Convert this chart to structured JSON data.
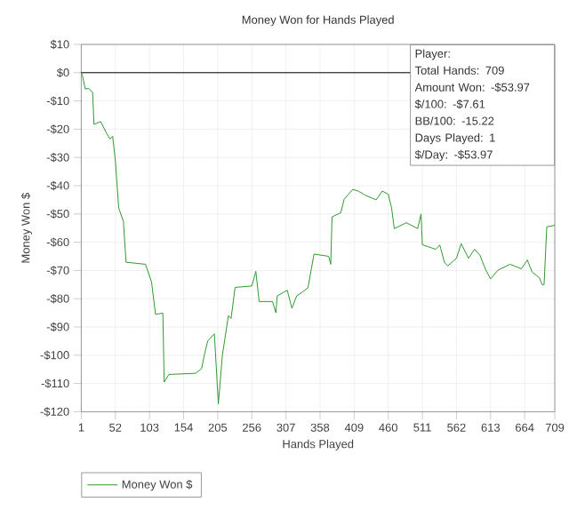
{
  "chart_data": {
    "type": "line",
    "title": "Money Won for Hands Played",
    "xlabel": "Hands Played",
    "ylabel": "Money Won $",
    "x": [
      1,
      3,
      7,
      12,
      18,
      20,
      30,
      39,
      44,
      48,
      52,
      57,
      64,
      68,
      97,
      106,
      112,
      123,
      125,
      132,
      172,
      181,
      185,
      190,
      200,
      206,
      212,
      221,
      225,
      231,
      256,
      262,
      267,
      287,
      292,
      294,
      309,
      316,
      323,
      332,
      340,
      349,
      371,
      374,
      376,
      389,
      394,
      407,
      416,
      425,
      436,
      442,
      451,
      460,
      465,
      469,
      487,
      504,
      509,
      511,
      531,
      537,
      544,
      549,
      562,
      569,
      580,
      589,
      597,
      606,
      613,
      624,
      642,
      659,
      668,
      675,
      686,
      690,
      693,
      697,
      709
    ],
    "series": [
      {
        "name": "Money Won $",
        "color": "#2e9a2e",
        "values": [
          0,
          -1.3,
          -5.8,
          -5.5,
          -7,
          -18.3,
          -17.3,
          -21.5,
          -23.5,
          -22.5,
          -31.2,
          -47.9,
          -52.7,
          -67.1,
          -67.8,
          -74,
          -85.5,
          -85.1,
          -109.5,
          -106.8,
          -106.4,
          -104.7,
          -100,
          -95,
          -92.4,
          -117.2,
          -100,
          -86,
          -87,
          -76,
          -75.5,
          -70.3,
          -81,
          -81,
          -85,
          -79,
          -77,
          -83.4,
          -79,
          -77.6,
          -76.1,
          -64.2,
          -65,
          -67.8,
          -51,
          -49.6,
          -44.8,
          -41.3,
          -42,
          -43.3,
          -44.4,
          -45,
          -41.9,
          -43,
          -47.9,
          -55.2,
          -53.1,
          -55.2,
          -50,
          -60.9,
          -62.5,
          -61,
          -67.1,
          -68.4,
          -65.7,
          -60.5,
          -65.7,
          -62.5,
          -64.6,
          -69.9,
          -73,
          -69.9,
          -67.8,
          -69.4,
          -66.3,
          -70.5,
          -72.6,
          -75,
          -75,
          -54.6,
          -54
        ]
      }
    ],
    "xlim": [
      1,
      709
    ],
    "ylim": [
      -120,
      10
    ],
    "xticks": [
      1,
      52,
      103,
      154,
      205,
      256,
      307,
      358,
      409,
      460,
      511,
      562,
      613,
      664,
      709
    ],
    "yticks": [
      {
        "value": 10,
        "label": "$10"
      },
      {
        "value": 0,
        "label": "$0"
      },
      {
        "value": -10,
        "label": "-$10"
      },
      {
        "value": -20,
        "label": "-$20"
      },
      {
        "value": -30,
        "label": "-$30"
      },
      {
        "value": -40,
        "label": "-$40"
      },
      {
        "value": -50,
        "label": "-$50"
      },
      {
        "value": -60,
        "label": "-$60"
      },
      {
        "value": -70,
        "label": "-$70"
      },
      {
        "value": -80,
        "label": "-$80"
      },
      {
        "value": -90,
        "label": "-$90"
      },
      {
        "value": -100,
        "label": "-$100"
      },
      {
        "value": -110,
        "label": "-$110"
      },
      {
        "value": -120,
        "label": "-$120"
      }
    ],
    "ref_lines": [
      {
        "axis": "y",
        "value": 0,
        "color": "#000000"
      }
    ],
    "annotations": [
      "Player:",
      "Total Hands: 709",
      "Amount Won: -$53.97",
      "$/100: -$7.61",
      "BB/100: -15.22",
      "Days Played: 1",
      "$/Day: -$53.97"
    ],
    "grid": true,
    "legend": "bottom left",
    "marker": "none",
    "line_style": "solid"
  }
}
